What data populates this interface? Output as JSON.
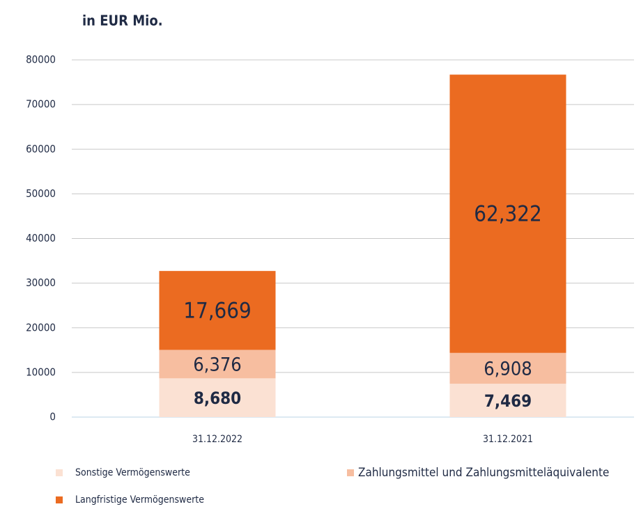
{
  "chart_data": {
    "type": "stacked_bar",
    "title": "in EUR Mio.",
    "categories": [
      "31.12.2022",
      "31.12.2021"
    ],
    "series": [
      {
        "name": "Sonstige Vermögenswerte",
        "color": "#fbe1d3",
        "values": [
          8680,
          7469
        ],
        "value_labels": [
          "8,680",
          "7,469"
        ]
      },
      {
        "name": "Zahlungsmittel und Zahlungsmitteläquivalente",
        "color": "#f7bea0",
        "values": [
          6376,
          6908
        ],
        "value_labels": [
          "6,376",
          "6,908"
        ]
      },
      {
        "name": "Langfristige Vermögenswerte",
        "color": "#eb6b21",
        "values": [
          17669,
          62322
        ],
        "value_labels": [
          "17,669",
          "62,322"
        ]
      }
    ],
    "ylim": [
      0,
      80000
    ],
    "yticks": [
      0,
      10000,
      20000,
      30000,
      40000,
      50000,
      60000,
      70000,
      80000
    ],
    "grid": true
  }
}
